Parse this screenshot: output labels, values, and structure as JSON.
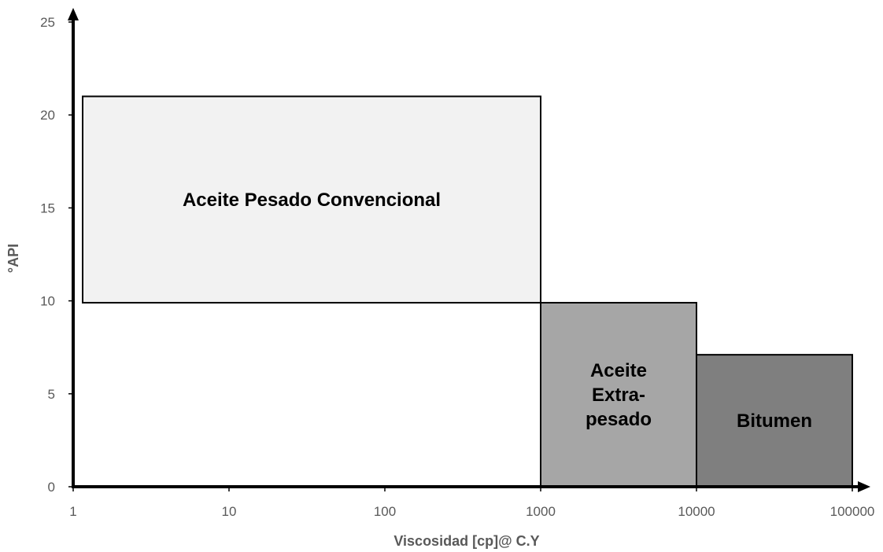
{
  "chart_data": {
    "type": "area",
    "x_scale": "log",
    "xlabel": "Viscosidad [cp]@ C.Y",
    "ylabel": "°API",
    "xlim": [
      1,
      100000
    ],
    "ylim": [
      0,
      25
    ],
    "x_ticks": [
      "1",
      "10",
      "100",
      "1000",
      "10000",
      "100000"
    ],
    "y_ticks": [
      "0",
      "5",
      "10",
      "15",
      "20",
      "25"
    ],
    "grid": false,
    "regions": [
      {
        "label_lines": [
          "Aceite Pesado Convencional"
        ],
        "x_range": [
          1.15,
          1000
        ],
        "y_range": [
          9.9,
          21
        ],
        "fill": "#f2f2f2"
      },
      {
        "label_lines": [
          "Aceite",
          "Extra-",
          "pesado"
        ],
        "x_range": [
          1000,
          10000
        ],
        "y_range": [
          0,
          9.9
        ],
        "fill": "#a6a6a6"
      },
      {
        "label_lines": [
          "Bitumen"
        ],
        "x_range": [
          10000,
          100000
        ],
        "y_range": [
          0,
          7.1
        ],
        "fill": "#7f7f7f"
      }
    ]
  }
}
